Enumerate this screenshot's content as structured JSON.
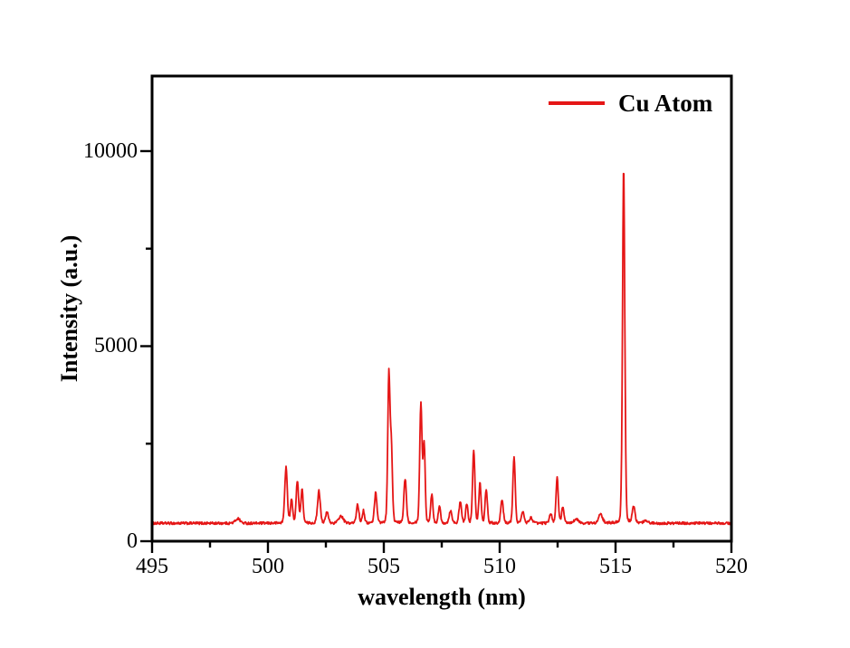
{
  "page": {
    "background": "#ffffff",
    "frame_color": "#000000",
    "text_color": "#000000"
  },
  "chart_data": {
    "type": "line",
    "title": "",
    "xlabel": "wavelength (nm)",
    "ylabel": "Intensity (a.u.)",
    "xlim": [
      495,
      520
    ],
    "ylim": [
      0,
      11925
    ],
    "grid": false,
    "x_major_ticks": [
      495,
      500,
      505,
      510,
      515,
      520
    ],
    "x_minor_ticks": [
      497.5,
      502.5,
      507.5,
      512.5,
      517.5
    ],
    "y_major_ticks": [
      0,
      5000,
      10000
    ],
    "y_minor_ticks": [
      2500,
      7500
    ],
    "legend": {
      "position": "top-right",
      "entries": [
        {
          "label": "Cu Atom",
          "color": "#e51616"
        }
      ]
    },
    "series": [
      {
        "name": "Cu Atom",
        "color": "#e51616",
        "line_width": 1.8,
        "baseline_intensity": 460,
        "noise_amplitude": 32,
        "peaks": [
          {
            "wavelength": 498.7,
            "intensity": 580,
            "width": 0.1
          },
          {
            "wavelength": 500.78,
            "intensity": 1900,
            "width": 0.055
          },
          {
            "wavelength": 501.02,
            "intensity": 1060,
            "width": 0.05
          },
          {
            "wavelength": 501.27,
            "intensity": 1560,
            "width": 0.05
          },
          {
            "wavelength": 501.47,
            "intensity": 1320,
            "width": 0.05
          },
          {
            "wavelength": 502.2,
            "intensity": 1290,
            "width": 0.06
          },
          {
            "wavelength": 502.55,
            "intensity": 740,
            "width": 0.06
          },
          {
            "wavelength": 503.15,
            "intensity": 640,
            "width": 0.1
          },
          {
            "wavelength": 503.87,
            "intensity": 940,
            "width": 0.055
          },
          {
            "wavelength": 504.12,
            "intensity": 780,
            "width": 0.05
          },
          {
            "wavelength": 504.65,
            "intensity": 1240,
            "width": 0.055
          },
          {
            "wavelength": 505.22,
            "intensity": 4280,
            "width": 0.05
          },
          {
            "wavelength": 505.33,
            "intensity": 2250,
            "width": 0.045
          },
          {
            "wavelength": 505.92,
            "intensity": 1600,
            "width": 0.055
          },
          {
            "wavelength": 506.6,
            "intensity": 3520,
            "width": 0.05
          },
          {
            "wavelength": 506.74,
            "intensity": 2480,
            "width": 0.045
          },
          {
            "wavelength": 507.07,
            "intensity": 1180,
            "width": 0.05
          },
          {
            "wavelength": 507.4,
            "intensity": 880,
            "width": 0.05
          },
          {
            "wavelength": 507.88,
            "intensity": 780,
            "width": 0.06
          },
          {
            "wavelength": 508.3,
            "intensity": 1000,
            "width": 0.055
          },
          {
            "wavelength": 508.58,
            "intensity": 930,
            "width": 0.05
          },
          {
            "wavelength": 508.88,
            "intensity": 2330,
            "width": 0.05
          },
          {
            "wavelength": 509.15,
            "intensity": 1490,
            "width": 0.05
          },
          {
            "wavelength": 509.42,
            "intensity": 1320,
            "width": 0.05
          },
          {
            "wavelength": 510.1,
            "intensity": 1050,
            "width": 0.055
          },
          {
            "wavelength": 510.62,
            "intensity": 2180,
            "width": 0.05
          },
          {
            "wavelength": 511.0,
            "intensity": 740,
            "width": 0.06
          },
          {
            "wavelength": 511.35,
            "intensity": 600,
            "width": 0.07
          },
          {
            "wavelength": 512.2,
            "intensity": 700,
            "width": 0.06
          },
          {
            "wavelength": 512.48,
            "intensity": 1620,
            "width": 0.05
          },
          {
            "wavelength": 512.72,
            "intensity": 870,
            "width": 0.05
          },
          {
            "wavelength": 513.3,
            "intensity": 560,
            "width": 0.1
          },
          {
            "wavelength": 514.35,
            "intensity": 680,
            "width": 0.09
          },
          {
            "wavelength": 515.35,
            "intensity": 9620,
            "width": 0.05
          },
          {
            "wavelength": 515.78,
            "intensity": 880,
            "width": 0.06
          },
          {
            "wavelength": 516.3,
            "intensity": 540,
            "width": 0.08
          }
        ]
      }
    ]
  }
}
